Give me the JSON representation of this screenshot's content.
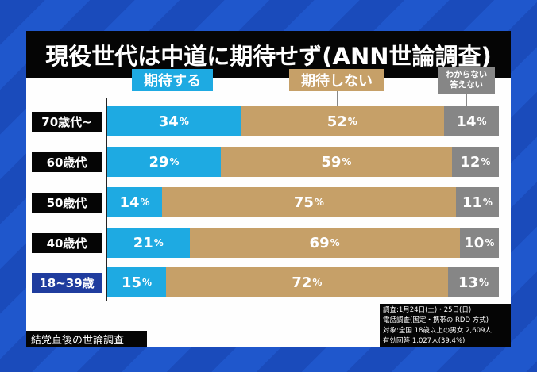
{
  "title": "現役世代は中道に期待せず(ANN世論調査)",
  "chart_data": {
    "type": "bar",
    "stacked": true,
    "orientation": "horizontal",
    "title": "現役世代は中道に期待せず(ANN世論調査)",
    "categories": [
      "70歳代~",
      "60歳代",
      "50歳代",
      "40歳代",
      "18~39歳"
    ],
    "series": [
      {
        "name": "期待する",
        "color": "#1eaae2",
        "values": [
          34,
          29,
          14,
          21,
          15
        ]
      },
      {
        "name": "期待しない",
        "color": "#c6a068",
        "values": [
          52,
          59,
          75,
          69,
          72
        ]
      },
      {
        "name": "わからない 答えない",
        "color": "#868686",
        "values": [
          14,
          12,
          11,
          10,
          13
        ]
      }
    ],
    "unit": "%",
    "xlim": [
      0,
      100
    ],
    "category_label_colors": [
      "#050505",
      "#050505",
      "#050505",
      "#050505",
      "#1f3c9e"
    ]
  },
  "legend": {
    "expect": "期待する",
    "not_expect": "期待しない",
    "unknown_1": "わからない",
    "unknown_2": "答えない"
  },
  "footer": "結党直後の世論調査",
  "source": [
    "調査:1月24日(土)・25日(日)",
    "電話調査(固定・携帯の RDD 方式)",
    "対象:全国 18歳以上の男女 2,609人",
    "有効回答:1,027人(39.4%)"
  ]
}
